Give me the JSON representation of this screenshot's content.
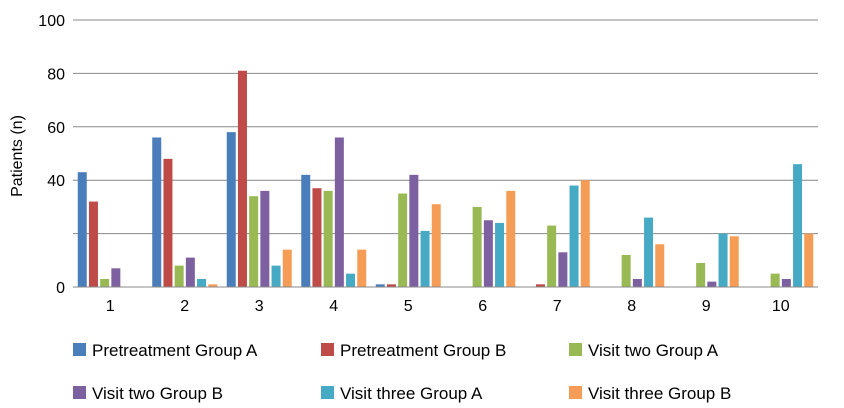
{
  "chart_data": {
    "type": "bar",
    "title": "",
    "xlabel": "",
    "ylabel": "Patients (n)",
    "ylim": [
      0,
      100
    ],
    "yticks": [
      0,
      40,
      60,
      80,
      100
    ],
    "gridlines": [
      20,
      40,
      60,
      80,
      100
    ],
    "grid": true,
    "legend_position": "bottom",
    "categories": [
      "1",
      "2",
      "3",
      "4",
      "5",
      "6",
      "7",
      "8",
      "9",
      "10"
    ],
    "series": [
      {
        "name": "Pretreatment Group A",
        "color": "#4a7ebb",
        "values": [
          43,
          56,
          58,
          42,
          1,
          0,
          0,
          0,
          0,
          0
        ]
      },
      {
        "name": "Pretreatment Group B",
        "color": "#be4b48",
        "values": [
          32,
          48,
          81,
          37,
          1,
          0,
          1,
          0,
          0,
          0
        ]
      },
      {
        "name": "Visit two Group A",
        "color": "#98b954",
        "values": [
          3,
          8,
          34,
          36,
          35,
          30,
          23,
          12,
          9,
          5
        ]
      },
      {
        "name": "Visit two Group B",
        "color": "#7d60a0",
        "values": [
          7,
          11,
          36,
          56,
          42,
          25,
          13,
          3,
          2,
          3
        ]
      },
      {
        "name": "Visit three Group A",
        "color": "#46aac5",
        "values": [
          0,
          3,
          8,
          5,
          21,
          24,
          38,
          26,
          20,
          46
        ]
      },
      {
        "name": "Visit three Group B",
        "color": "#f59d56",
        "values": [
          0,
          1,
          14,
          14,
          31,
          36,
          40,
          16,
          19,
          20
        ]
      }
    ]
  }
}
